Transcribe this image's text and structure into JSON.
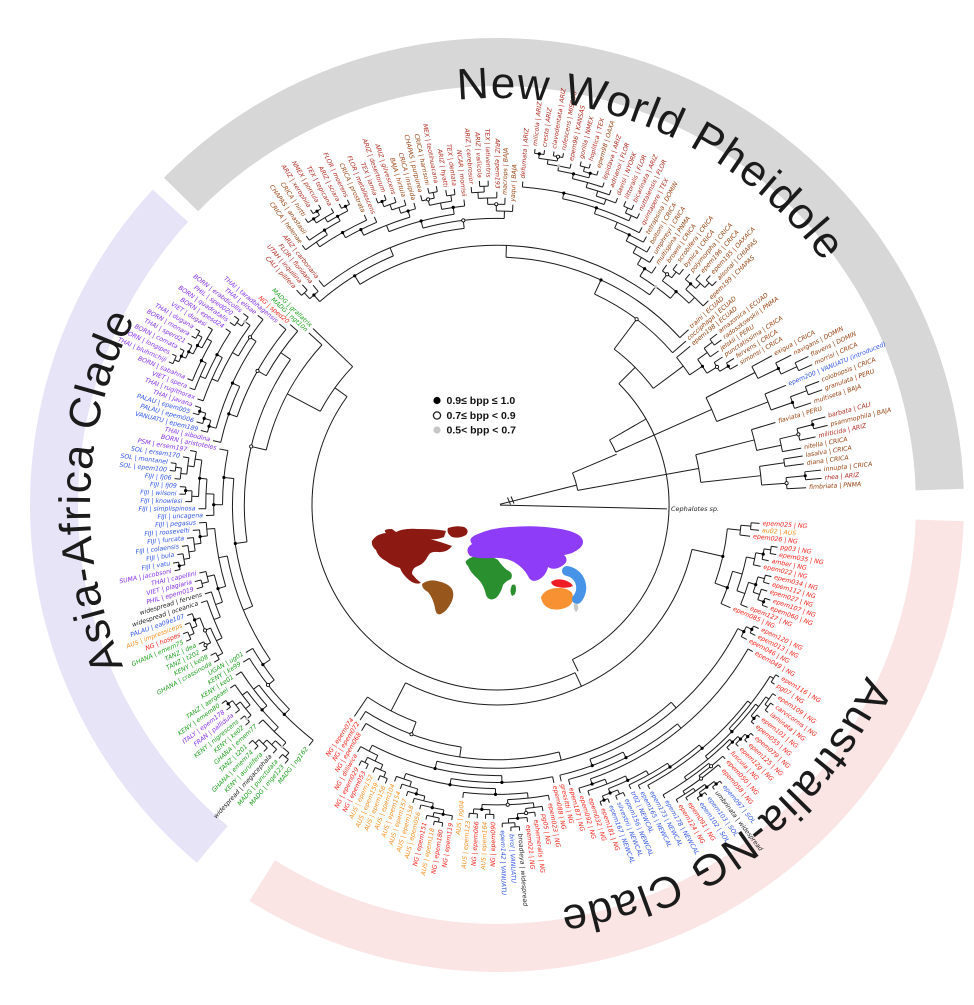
{
  "figure": {
    "center_legend": {
      "items": [
        {
          "symbol": "filled-black",
          "label": "0.9≤ bpp ≤ 1.0"
        },
        {
          "symbol": "open-circle",
          "label": "0.7≤ bpp < 0.9"
        },
        {
          "symbol": "filled-gray",
          "label": "0.5< bpp < 0.7"
        }
      ]
    },
    "outgroup_label": "Cephalotes sp.",
    "tip_colors": {
      "B": "#97400f",
      "R": "#b02a1e",
      "N": "#f22015",
      "O": "#f58e1e",
      "G": "#1fa11f",
      "P": "#8530e8",
      "L": "#2f55e8",
      "K": "#1a1a1a"
    },
    "map_colors": {
      "north_america": "#8c1a13",
      "south_america": "#96561c",
      "africa": "#2a8f2e",
      "eurasia": "#8e3cf7",
      "australia": "#f89131",
      "new_guinea": "#ee1c24",
      "pacific": "#4693e8",
      "minor_islands": "#c9c9c9"
    },
    "clades": [
      {
        "name": "New World Pheidole",
        "band_color": "#d7d7d7",
        "arc": [
          2,
          135.5
        ],
        "tips_arc": [
          3.2,
          133
        ],
        "title_center": 66,
        "title_halfspan": 33,
        "seed": 11,
        "tips": [
          [
            "fimbriata | PNMA",
            "B"
          ],
          [
            "rhea | ARIZ",
            "R"
          ],
          [
            "innupta | CRICA",
            "B"
          ],
          [
            "diana | CRICA",
            "B"
          ],
          [
            "lasalva | CRICA",
            "B"
          ],
          [
            "nitella | CRICA",
            "B"
          ],
          [
            "militicida | ARIZ",
            "R"
          ],
          [
            "psammophila | BAJA",
            "B"
          ],
          [
            "barbata | CALI",
            "R"
          ],
          [
            "flaviata | PERU",
            "B"
          ],
          [
            "multiseta | BAJA",
            "B"
          ],
          [
            "granulata | PERU",
            "B"
          ],
          [
            "colobopsis | CRICA",
            "B"
          ],
          [
            "epem200 | VANUATU (introduced)",
            "L"
          ],
          [
            "morrisi | CRICA",
            "B"
          ],
          [
            "flavens | DOMIN",
            "B"
          ],
          [
            "navigans | DOMIN",
            "B"
          ],
          [
            "exigua | CRICA",
            "B"
          ],
          [
            "simonsi | CRICA",
            "B"
          ],
          [
            "fervens | CRICA",
            "B"
          ],
          [
            "punctatissima | CRICA",
            "B"
          ],
          [
            "jelskii | PERU",
            "B"
          ],
          [
            "radoszkowskii | PNMA",
            "B"
          ],
          [
            "amazonica | ECUAD",
            "B"
          ],
          [
            "epem198 | ECUAD",
            "B"
          ],
          [
            "cocciphaga | ECUAD",
            "B"
          ],
          [
            "traini | ECUAD",
            "B"
          ],
          [
            "epem199 | CHAPAS",
            "B"
          ],
          [
            "alsonal | CHIAPAS",
            "B"
          ],
          [
            "epem195 | OAXACA",
            "B"
          ],
          [
            "epem196 | CRICA",
            "B"
          ],
          [
            "polymorpha | CRICA",
            "B"
          ],
          [
            "bynica | CRICA",
            "B"
          ],
          [
            "scrobifera | CRICA",
            "B"
          ],
          [
            "browni | CRICA",
            "B"
          ],
          [
            "multispina | PNMA",
            "B"
          ],
          [
            "umphreyi | CRICA",
            "B"
          ],
          [
            "boltoni | CRICA",
            "B"
          ],
          [
            "tetrapsina | DOMIN",
            "B"
          ],
          [
            "quintapere | TEX",
            "R"
          ],
          [
            "nuttalensis | FLOR",
            "R"
          ],
          [
            "bicarinata | ARIZ",
            "R"
          ],
          [
            "littoralis | FLOR",
            "R"
          ],
          [
            "davisi | NYORK",
            "R"
          ],
          [
            "adrianoi | FLOR",
            "R"
          ],
          [
            "lepidava | ARIZ",
            "R"
          ],
          [
            "epem98 | OAXA",
            "B"
          ],
          [
            "hoplitica | TEX",
            "R"
          ],
          [
            "gorilla | NMEX",
            "R"
          ],
          [
            "epem96 | KANSAS",
            "R"
          ],
          [
            "rufescens | MISSOU",
            "R"
          ],
          [
            "clavodentata | ARIZ",
            "R"
          ],
          [
            "cresta | ARIZ",
            "R"
          ],
          [
            "milicola | ARIZ",
            "R"
          ],
          [
            "defumata | ARIZ",
            "R"
          ],
          [
            "yaqui | BAJA",
            "B"
          ],
          [
            "macrops | BAJA",
            "B"
          ],
          [
            "ARIZ | epem193",
            "R"
          ],
          [
            "TEX | lativentris",
            "R"
          ],
          [
            "ARIZ | vallicola",
            "R"
          ],
          [
            "ARIZ | cerebrosior",
            "R"
          ],
          [
            "NCAR | morrisii",
            "R"
          ],
          [
            "TEX | dentata",
            "R"
          ],
          [
            "ARIZ | hyatti",
            "R"
          ],
          [
            "MEX | teotihuacana",
            "R"
          ],
          [
            "CRICA | harrisoni",
            "B"
          ],
          [
            "CHAPAS | purpurea",
            "B"
          ],
          [
            "CRICA | insipida",
            "B"
          ],
          [
            "BAJA | hirtula",
            "B"
          ],
          [
            "ARIZ | gilvescens",
            "R"
          ],
          [
            "ARIZ | desertorum",
            "R"
          ],
          [
            "TEX | lamia",
            "R"
          ],
          [
            "FLOR | metallescens",
            "R"
          ],
          [
            "CRICA | prostrata",
            "B"
          ],
          [
            "FLOR | moerens",
            "R"
          ],
          [
            "ARIZ | sciara",
            "R"
          ],
          [
            "TEX | tepicana",
            "R"
          ],
          [
            "NMEX | porcula",
            "R"
          ],
          [
            "ARIZ | xerophila",
            "R"
          ],
          [
            "CRICA | hirtti",
            "B"
          ],
          [
            "CHAPAS | anastasii",
            "B"
          ],
          [
            "CRICA | helenae",
            "B"
          ],
          [
            "ARIZ | carbonaria",
            "R"
          ],
          [
            "FLOR | floridana",
            "R"
          ],
          [
            "UTAH | inquilina",
            "R"
          ],
          [
            "CALI | pilifera",
            "R"
          ]
        ]
      },
      {
        "name": "Asia-Africa Clade",
        "band_color": "#e8e4f7",
        "arc": [
          137.5,
          230
        ],
        "tips_arc": [
          136.2,
          232
        ],
        "title_center": 178,
        "title_halfspan": 29,
        "seed": 22,
        "tips": [
          [
            "MADG | grallatrix",
            "G"
          ],
          [
            "MADG | ngt10n",
            "G"
          ],
          [
            "NG | sped20",
            "N"
          ],
          [
            "THAI | taradbhagensis",
            "P"
          ],
          [
            "THAI | elisae",
            "P"
          ],
          [
            "BORN | erabdicollis",
            "P"
          ],
          [
            "PHIL | sped020",
            "P"
          ],
          [
            "BORN | quadratalis",
            "P"
          ],
          [
            "BORN | epesd24",
            "P"
          ],
          [
            "VIET | dugasi",
            "P"
          ],
          [
            "THAI | dugana",
            "P"
          ],
          [
            "BORN | monara",
            "P"
          ],
          [
            "THAI | sperd21",
            "P"
          ],
          [
            "BORN | comata",
            "P"
          ],
          [
            "BORN | longipes",
            "P"
          ],
          [
            "THAI | bluhmchiji",
            "P"
          ],
          [
            "BORN | sabahna",
            "P"
          ],
          [
            "VIET | spera",
            "P"
          ],
          [
            "THAI | rugithorax",
            "P"
          ],
          [
            "THAI | javana",
            "P"
          ],
          [
            "PALAU | epem005",
            "L"
          ],
          [
            "PALAU | epem006",
            "L"
          ],
          [
            "VANUATU | epem189",
            "L"
          ],
          [
            "THAI | sibodina",
            "P"
          ],
          [
            "BORN | aristoteles",
            "P"
          ],
          [
            "PSM | ersem197",
            "P"
          ],
          [
            "SOL | ersem170",
            "L"
          ],
          [
            "SOL | montanel",
            "L"
          ],
          [
            "SOL | epem100",
            "L"
          ],
          [
            "FIJI | fj06",
            "L"
          ],
          [
            "FIJI | fj09",
            "L"
          ],
          [
            "FIJI | wilsoni",
            "L"
          ],
          [
            "FIJI | knowlesi",
            "L"
          ],
          [
            "FIJI | simplispinosa",
            "L"
          ],
          [
            "FIJI | uncagena",
            "L"
          ],
          [
            "FIJI | pegasus",
            "L"
          ],
          [
            "FIJI | roosevelti",
            "L"
          ],
          [
            "FIJI | furcata",
            "L"
          ],
          [
            "FIJI | colaensis",
            "L"
          ],
          [
            "FIJI | bula",
            "L"
          ],
          [
            "FIJI | vatu",
            "L"
          ],
          [
            "SUMA | jacobsoni",
            "P"
          ],
          [
            "THAI | capellini",
            "P"
          ],
          [
            "VIET | plagiaria",
            "P"
          ],
          [
            "PHIL | epem019",
            "P"
          ],
          [
            "widespread | fervens",
            "K"
          ],
          [
            "widespread | oceanica",
            "K"
          ],
          [
            "PALAU | ea09e107",
            "L"
          ],
          [
            "AUS | impressiceps",
            "O"
          ],
          [
            "NG | hospes",
            "N"
          ],
          [
            "GHANA | emem75",
            "G"
          ],
          [
            "TANZ | dea",
            "G"
          ],
          [
            "TANZ | t202",
            "G"
          ],
          [
            "KENY | ke08",
            "G"
          ],
          [
            "GHANA | crassinoda",
            "G"
          ],
          [
            "UGAN | ug01",
            "G"
          ],
          [
            "KENY | ke99",
            "G"
          ],
          [
            "KENY | ke01",
            "G"
          ],
          [
            "TANZ | aergeaei",
            "G"
          ],
          [
            "KENY | emem80",
            "G"
          ],
          [
            "ITALY | epem178",
            "P"
          ],
          [
            "FRAN | pallidula",
            "P"
          ],
          [
            "KENY | nigrescens",
            "G"
          ],
          [
            "KENY | ke02",
            "G"
          ],
          [
            "GHANA | emem77",
            "G"
          ],
          [
            "TANZ | t201",
            "G"
          ],
          [
            "GHANA | emem74",
            "G"
          ],
          [
            "KENY | aurulifera",
            "G"
          ],
          [
            "widespread | megacephala",
            "K"
          ],
          [
            "MADG | punctulata",
            "G"
          ],
          [
            "MADG | mge123",
            "G"
          ],
          [
            "MADG | ng162",
            "G"
          ]
        ]
      },
      {
        "name": "Australia-NG Clade",
        "band_color": "#fae4e4",
        "arc": [
          -122,
          -2
        ],
        "tips_arc": [
          -124,
          -4
        ],
        "title_center": -53,
        "title_halfspan": 30,
        "seed": 33,
        "tips": [
          [
            "NG | epem074",
            "N"
          ],
          [
            "NG | epem072",
            "N"
          ],
          [
            "NG | epem068",
            "N"
          ],
          [
            "NG | dilliwica",
            "N"
          ],
          [
            "NG | epem029",
            "N"
          ],
          [
            "NG | epem053",
            "N"
          ],
          [
            "AUS | epem152",
            "O"
          ],
          [
            "AUS | epem159",
            "O"
          ],
          [
            "AUS | epem156",
            "O"
          ],
          [
            "AUS | epem104",
            "O"
          ],
          [
            "AUS | epem154",
            "O"
          ],
          [
            "AUS | epem157",
            "O"
          ],
          [
            "AUS | epem158",
            "O"
          ],
          [
            "AUS | epem056",
            "O"
          ],
          [
            "NG | epem151",
            "N"
          ],
          [
            "AUS | epem118",
            "O"
          ],
          [
            "NG | epem180",
            "N"
          ],
          [
            "NG | epem119",
            "N"
          ],
          [
            "AUS | pg04",
            "O"
          ],
          [
            "AUS | epem123",
            "O"
          ],
          [
            "NG | epem066",
            "N"
          ],
          [
            "AUS | epem164",
            "O"
          ],
          [
            "NG | epem090",
            "N"
          ],
          [
            "epem142 | VANUATU",
            "L"
          ],
          [
            "birol | VANUATU",
            "L"
          ],
          [
            "broadleya | widespread",
            "K"
          ],
          [
            "epem021 | NG",
            "N"
          ],
          [
            "ephemeralis | NG",
            "N"
          ],
          [
            "pg05 | NG",
            "N"
          ],
          [
            "epem023 | NG",
            "N"
          ],
          [
            "epem088 | NG",
            "N"
          ],
          [
            "gressitti | NG",
            "N"
          ],
          [
            "epem187 | NG",
            "N"
          ],
          [
            "epem092 | NG",
            "N"
          ],
          [
            "epem032 | NG",
            "N"
          ],
          [
            "epem181 | NG",
            "N"
          ],
          [
            "epem167 | NEWCAL",
            "L"
          ],
          [
            "silvestrii | NEWCAL",
            "L"
          ],
          [
            "epem156 | NEWCAL",
            "L"
          ],
          [
            "tr02 | NEWCAL",
            "L"
          ],
          [
            "epem165 | NEWCAL",
            "L"
          ],
          [
            "epem173 | NEWCAL",
            "L"
          ],
          [
            "epem178 | NEWCAL",
            "L"
          ],
          [
            "epem124 | NG",
            "N"
          ],
          [
            "epem091 | NG",
            "N"
          ],
          [
            "epem102 | SOL",
            "L"
          ],
          [
            "epem103 | SOL",
            "L"
          ],
          [
            "umbrinata | widespread",
            "K"
          ],
          [
            "epem097 | SOL",
            "L"
          ],
          [
            "epem058 | NG",
            "N"
          ],
          [
            "epem050 | NG",
            "N"
          ],
          [
            "fuscula | NG",
            "N"
          ],
          [
            "epem12g | NG",
            "N"
          ],
          [
            "epem125 | NG",
            "N"
          ],
          [
            "epem079 | NG",
            "N"
          ],
          [
            "epem055 | NG",
            "N"
          ],
          [
            "epem101 | NG",
            "N"
          ],
          [
            "laminata | NG",
            "N"
          ],
          [
            "carvicornis | NG",
            "N"
          ],
          [
            "epem109 | NG",
            "N"
          ],
          [
            "pg07 | NG",
            "N"
          ],
          [
            "epem116 | NG",
            "N"
          ],
          [
            "epem049 | NG",
            "N"
          ],
          [
            "epem046 | NG",
            "N"
          ],
          [
            "epem013 | NG",
            "N"
          ],
          [
            "epem120 | NG",
            "N"
          ],
          [
            "epem085 | NG",
            "N"
          ],
          [
            "epem127 | NG",
            "N"
          ],
          [
            "epem060 | NG",
            "N"
          ],
          [
            "epem107 | NG",
            "N"
          ],
          [
            "epem027 | NG",
            "N"
          ],
          [
            "epem112 | NG",
            "N"
          ],
          [
            "epem034 | NG",
            "N"
          ],
          [
            "epem022 | NG",
            "N"
          ],
          [
            "amber | NG",
            "N"
          ],
          [
            "epem035 | NG",
            "N"
          ],
          [
            "pg03 | NG",
            "N"
          ],
          [
            "epem026 | NG",
            "N"
          ],
          [
            "au02 | AUS",
            "O"
          ],
          [
            "epem025 | NG",
            "N"
          ]
        ]
      }
    ]
  }
}
